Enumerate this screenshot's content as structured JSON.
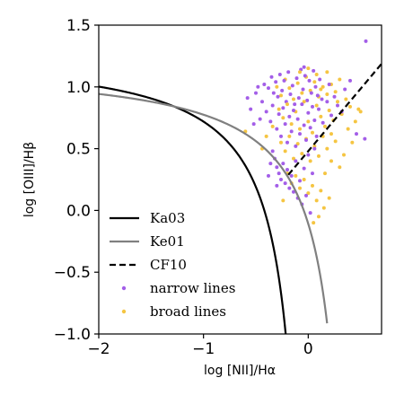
{
  "chart_data": {
    "type": "scatter",
    "xlabel": "log [NII]/Hα",
    "ylabel": "log [OIII]/Hβ",
    "xlim": [
      -2.0,
      0.7
    ],
    "ylim": [
      -1.0,
      1.5
    ],
    "xticks": [
      -2,
      -1,
      0
    ],
    "xtick_labels": [
      "−2",
      "−1",
      "0"
    ],
    "yticks": [
      -1.0,
      -0.5,
      0.0,
      0.5,
      1.0,
      1.5
    ],
    "ytick_labels": [
      "−1.0",
      "−0.5",
      "0.0",
      "0.5",
      "1.0",
      "1.5"
    ],
    "grid": false,
    "legend_position": "lower-left",
    "lines": [
      {
        "name": "Ka03",
        "formula": "0.61/(x-0.05)+1.30",
        "x_range": [
          -2.0,
          -0.2
        ],
        "color": "#000000",
        "dash": "solid"
      },
      {
        "name": "Ke01",
        "formula": "0.61/(x-0.47)+1.19",
        "x_range": [
          -2.0,
          0.18
        ],
        "color": "#808080",
        "dash": "solid"
      },
      {
        "name": "CF10",
        "formula": "1.01*x+0.48",
        "x_range": [
          -0.19,
          0.7
        ],
        "color": "#000000",
        "dash": "dashed"
      }
    ],
    "series": [
      {
        "name": "narrow lines",
        "color": "#a35ee8",
        "points": [
          [
            -0.42,
            1.02
          ],
          [
            -0.38,
            0.99
          ],
          [
            -0.35,
            1.08
          ],
          [
            -0.33,
            0.95
          ],
          [
            -0.31,
            1.04
          ],
          [
            -0.29,
            0.92
          ],
          [
            -0.27,
            1.1
          ],
          [
            -0.25,
            0.97
          ],
          [
            -0.23,
            1.05
          ],
          [
            -0.21,
            0.88
          ],
          [
            -0.19,
            1.12
          ],
          [
            -0.17,
            0.94
          ],
          [
            -0.15,
            1.01
          ],
          [
            -0.13,
            0.86
          ],
          [
            -0.11,
            1.07
          ],
          [
            -0.09,
            0.91
          ],
          [
            -0.07,
            1.14
          ],
          [
            -0.05,
            0.98
          ],
          [
            -0.03,
            1.09
          ],
          [
            -0.01,
            0.89
          ],
          [
            0.01,
            1.05
          ],
          [
            0.03,
            0.95
          ],
          [
            0.05,
            1.13
          ],
          [
            0.07,
            1.0
          ],
          [
            0.09,
            0.93
          ],
          [
            0.11,
            1.06
          ],
          [
            0.13,
            0.9
          ],
          [
            -0.4,
            0.8
          ],
          [
            -0.36,
            0.72
          ],
          [
            -0.34,
            0.85
          ],
          [
            -0.3,
            0.66
          ],
          [
            -0.28,
            0.78
          ],
          [
            -0.26,
            0.6
          ],
          [
            -0.24,
            0.83
          ],
          [
            -0.22,
            0.7
          ],
          [
            -0.2,
            0.55
          ],
          [
            -0.18,
            0.76
          ],
          [
            -0.16,
            0.64
          ],
          [
            -0.14,
            0.81
          ],
          [
            -0.12,
            0.52
          ],
          [
            -0.1,
            0.74
          ],
          [
            -0.08,
            0.62
          ],
          [
            -0.06,
            0.86
          ],
          [
            -0.04,
            0.69
          ],
          [
            -0.02,
            0.57
          ],
          [
            0.0,
            0.79
          ],
          [
            0.02,
            0.67
          ],
          [
            0.04,
            0.84
          ],
          [
            0.06,
            0.73
          ],
          [
            0.08,
            0.6
          ],
          [
            0.1,
            0.82
          ],
          [
            0.14,
            0.71
          ],
          [
            0.18,
            0.88
          ],
          [
            0.22,
            0.77
          ],
          [
            0.25,
            0.92
          ],
          [
            0.28,
            0.85
          ],
          [
            -0.55,
            0.82
          ],
          [
            -0.5,
            0.95
          ],
          [
            -0.46,
            0.74
          ],
          [
            -0.44,
            0.88
          ],
          [
            -0.48,
            1.0
          ],
          [
            -0.52,
            0.7
          ],
          [
            -0.58,
            0.91
          ],
          [
            -0.32,
            0.42
          ],
          [
            -0.3,
            0.35
          ],
          [
            -0.28,
            0.3
          ],
          [
            -0.26,
            0.25
          ],
          [
            -0.24,
            0.38
          ],
          [
            -0.22,
            0.22
          ],
          [
            -0.2,
            0.33
          ],
          [
            -0.18,
            0.18
          ],
          [
            -0.16,
            0.28
          ],
          [
            -0.14,
            0.15
          ],
          [
            -0.12,
            0.4
          ],
          [
            -0.1,
            0.1
          ],
          [
            -0.08,
            0.24
          ],
          [
            -0.06,
            0.05
          ],
          [
            -0.04,
            0.34
          ],
          [
            -0.02,
            0.12
          ],
          [
            0.0,
            0.45
          ],
          [
            0.02,
            -0.02
          ],
          [
            0.04,
            0.3
          ],
          [
            0.06,
            0.5
          ],
          [
            -0.34,
            0.48
          ],
          [
            -0.36,
            0.38
          ],
          [
            -0.38,
            0.28
          ],
          [
            -0.3,
            0.2
          ],
          [
            0.4,
            1.05
          ],
          [
            0.35,
            0.98
          ],
          [
            0.55,
            1.37
          ],
          [
            0.46,
            0.62
          ],
          [
            0.54,
            0.58
          ],
          [
            0.32,
            0.8
          ],
          [
            0.2,
            1.02
          ],
          [
            -0.04,
            1.16
          ]
        ]
      },
      {
        "name": "broad lines",
        "color": "#f5c542",
        "points": [
          [
            -0.3,
            1.0
          ],
          [
            -0.26,
            0.93
          ],
          [
            -0.22,
            1.06
          ],
          [
            -0.18,
            0.99
          ],
          [
            -0.14,
            0.9
          ],
          [
            -0.1,
            1.03
          ],
          [
            -0.06,
            0.95
          ],
          [
            -0.02,
            1.08
          ],
          [
            0.02,
            0.97
          ],
          [
            0.06,
            1.04
          ],
          [
            0.1,
            0.92
          ],
          [
            0.14,
            1.0
          ],
          [
            0.18,
            0.94
          ],
          [
            0.22,
            1.02
          ],
          [
            0.26,
            0.96
          ],
          [
            0.3,
            1.06
          ],
          [
            -0.28,
            0.82
          ],
          [
            -0.24,
            0.75
          ],
          [
            -0.2,
            0.86
          ],
          [
            -0.16,
            0.7
          ],
          [
            -0.12,
            0.8
          ],
          [
            -0.08,
            0.66
          ],
          [
            -0.04,
            0.88
          ],
          [
            0.0,
            0.72
          ],
          [
            0.04,
            0.63
          ],
          [
            0.08,
            0.85
          ],
          [
            0.12,
            0.76
          ],
          [
            0.16,
            0.68
          ],
          [
            0.2,
            0.81
          ],
          [
            0.24,
            0.73
          ],
          [
            0.28,
            0.88
          ],
          [
            0.32,
            0.78
          ],
          [
            0.36,
            0.9
          ],
          [
            0.4,
            0.84
          ],
          [
            -0.26,
            0.55
          ],
          [
            -0.22,
            0.48
          ],
          [
            -0.18,
            0.6
          ],
          [
            -0.14,
            0.42
          ],
          [
            -0.1,
            0.54
          ],
          [
            -0.06,
            0.46
          ],
          [
            -0.02,
            0.58
          ],
          [
            0.02,
            0.4
          ],
          [
            0.06,
            0.52
          ],
          [
            0.1,
            0.44
          ],
          [
            0.14,
            0.6
          ],
          [
            0.18,
            0.5
          ],
          [
            0.22,
            0.62
          ],
          [
            0.26,
            0.56
          ],
          [
            -0.2,
            0.3
          ],
          [
            -0.16,
            0.22
          ],
          [
            -0.12,
            0.28
          ],
          [
            -0.08,
            0.18
          ],
          [
            -0.04,
            0.25
          ],
          [
            0.0,
            0.14
          ],
          [
            0.04,
            0.2
          ],
          [
            0.08,
            0.08
          ],
          [
            0.12,
            0.16
          ],
          [
            0.16,
            0.3
          ],
          [
            0.1,
            -0.05
          ],
          [
            0.05,
            -0.1
          ],
          [
            0.15,
            0.02
          ],
          [
            0.2,
            0.1
          ],
          [
            -0.24,
            0.08
          ],
          [
            0.22,
            0.4
          ],
          [
            -0.08,
            1.12
          ],
          [
            0.0,
            1.15
          ],
          [
            0.08,
            1.1
          ],
          [
            -0.44,
            0.5
          ],
          [
            -0.4,
            0.6
          ],
          [
            -0.6,
            0.64
          ],
          [
            0.48,
            0.82
          ],
          [
            0.5,
            0.8
          ],
          [
            0.45,
            0.72
          ],
          [
            0.38,
            0.66
          ],
          [
            0.42,
            0.55
          ],
          [
            0.34,
            0.45
          ],
          [
            0.3,
            0.35
          ],
          [
            0.12,
            0.98
          ],
          [
            0.18,
            1.12
          ],
          [
            -0.34,
            0.68
          ]
        ]
      }
    ]
  }
}
